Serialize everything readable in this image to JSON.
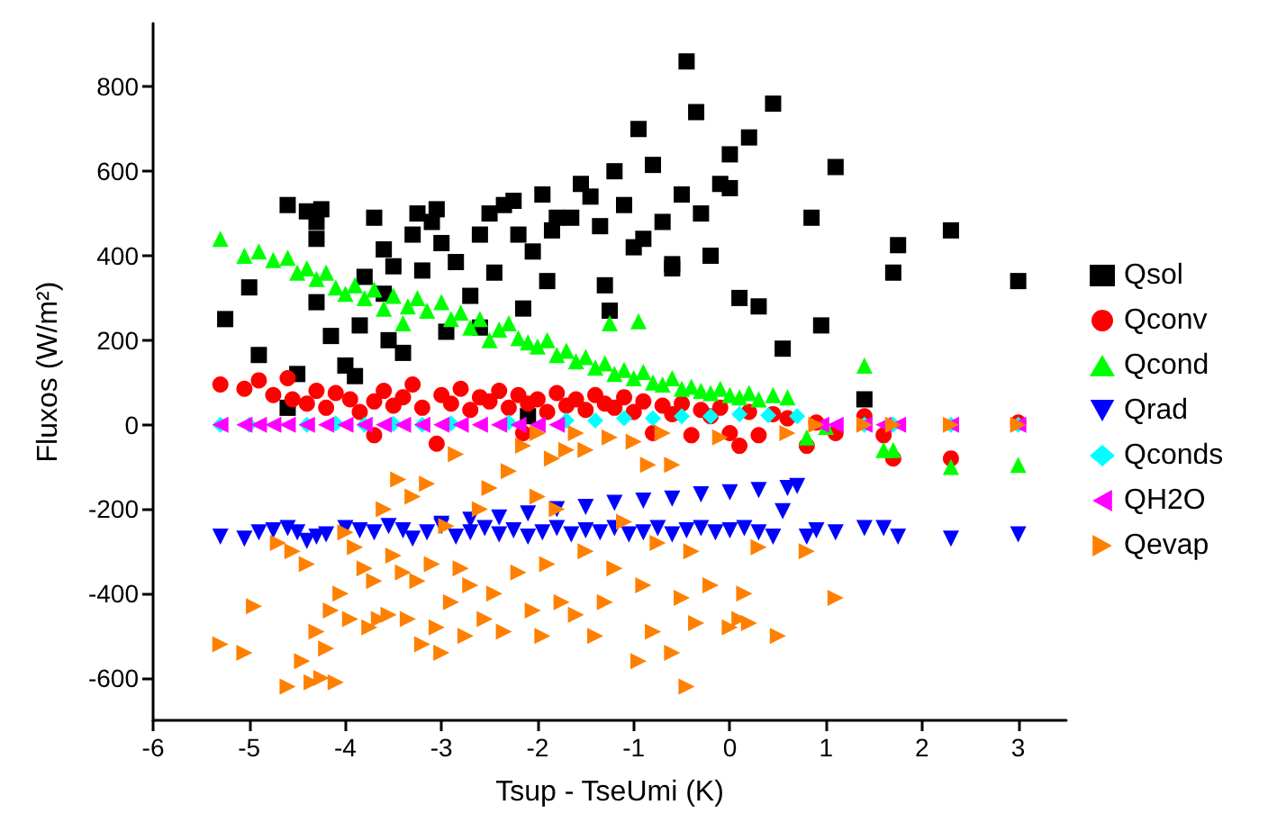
{
  "chart_data": {
    "type": "scatter",
    "xlabel": "Tsup - TseUmi (K)",
    "ylabel": "Fluxos (W/m²)",
    "xlim": [
      -6,
      3.5
    ],
    "xticks": [
      -6,
      -5,
      -4,
      -3,
      -2,
      -1,
      0,
      1,
      2,
      3
    ],
    "ylim": [
      -700,
      950
    ],
    "yticks": [
      -600,
      -400,
      -200,
      0,
      200,
      400,
      600,
      800
    ],
    "grid": false,
    "legend": "right",
    "series": [
      {
        "name": "Qsol",
        "color": "#000000",
        "marker": "square",
        "x": [
          -5.25,
          -5.0,
          -4.9,
          -4.6,
          -4.6,
          -4.5,
          -4.4,
          -4.3,
          -4.25,
          -4.3,
          -4.3,
          -4.15,
          -4.0,
          -3.9,
          -3.85,
          -3.8,
          -3.7,
          -3.6,
          -3.6,
          -3.55,
          -3.5,
          -3.4,
          -3.3,
          -3.25,
          -3.2,
          -3.1,
          -3.05,
          -3.0,
          -2.95,
          -2.85,
          -2.7,
          -2.6,
          -2.6,
          -2.5,
          -2.45,
          -2.35,
          -2.25,
          -2.2,
          -2.15,
          -2.1,
          -2.05,
          -1.95,
          -1.9,
          -1.85,
          -1.8,
          -1.65,
          -1.55,
          -1.45,
          -1.35,
          -1.3,
          -1.25,
          -1.2,
          -1.1,
          -1.0,
          -0.95,
          -0.9,
          -0.8,
          -0.7,
          -0.6,
          -0.6,
          -0.5,
          -0.45,
          -0.35,
          -0.3,
          -0.2,
          -0.1,
          0.0,
          0.0,
          0.1,
          0.2,
          0.3,
          0.45,
          0.55,
          0.85,
          0.95,
          1.1,
          1.4,
          1.7,
          1.75,
          2.3,
          3.0
        ],
        "values": [
          250,
          325,
          165,
          520,
          40,
          120,
          505,
          480,
          510,
          440,
          290,
          210,
          140,
          115,
          235,
          350,
          490,
          415,
          310,
          200,
          375,
          170,
          450,
          500,
          365,
          480,
          510,
          430,
          220,
          385,
          305,
          450,
          230,
          500,
          360,
          520,
          530,
          450,
          275,
          20,
          410,
          545,
          340,
          460,
          490,
          490,
          570,
          540,
          470,
          330,
          270,
          600,
          520,
          420,
          700,
          440,
          615,
          480,
          380,
          370,
          545,
          860,
          740,
          500,
          400,
          570,
          640,
          560,
          300,
          680,
          280,
          760,
          180,
          490,
          235,
          610,
          60,
          360,
          425,
          460,
          340
        ]
      },
      {
        "name": "Qconv",
        "color": "#ff0000",
        "marker": "circle",
        "x": [
          -5.3,
          -5.05,
          -4.9,
          -4.75,
          -4.6,
          -4.55,
          -4.4,
          -4.3,
          -4.2,
          -4.1,
          -3.95,
          -3.85,
          -3.7,
          -3.7,
          -3.6,
          -3.5,
          -3.4,
          -3.3,
          -3.2,
          -3.05,
          -3.0,
          -2.9,
          -2.8,
          -2.7,
          -2.6,
          -2.5,
          -2.4,
          -2.3,
          -2.2,
          -2.15,
          -2.1,
          -2.0,
          -1.9,
          -1.8,
          -1.7,
          -1.6,
          -1.5,
          -1.4,
          -1.3,
          -1.2,
          -1.1,
          -1.0,
          -0.9,
          -0.8,
          -0.7,
          -0.6,
          -0.5,
          -0.4,
          -0.3,
          -0.2,
          -0.1,
          0.0,
          0.1,
          0.2,
          0.3,
          0.45,
          0.6,
          0.8,
          0.9,
          1.1,
          1.4,
          1.6,
          1.7,
          2.3,
          3.0
        ],
        "values": [
          95,
          85,
          105,
          70,
          110,
          60,
          50,
          80,
          40,
          75,
          60,
          30,
          55,
          -25,
          80,
          45,
          65,
          95,
          40,
          -45,
          70,
          50,
          85,
          35,
          65,
          55,
          80,
          40,
          70,
          -20,
          50,
          60,
          30,
          75,
          45,
          60,
          35,
          70,
          50,
          40,
          65,
          30,
          55,
          -20,
          45,
          25,
          50,
          -25,
          35,
          20,
          40,
          -20,
          -50,
          30,
          -25,
          25,
          15,
          -50,
          5,
          -20,
          20,
          -25,
          -80,
          -80,
          5
        ]
      },
      {
        "name": "Qcond",
        "color": "#00ff00",
        "marker": "triangle",
        "x": [
          -5.3,
          -5.05,
          -4.9,
          -4.75,
          -4.6,
          -4.5,
          -4.4,
          -4.3,
          -4.2,
          -4.1,
          -4.0,
          -3.9,
          -3.8,
          -3.7,
          -3.6,
          -3.5,
          -3.4,
          -3.35,
          -3.25,
          -3.15,
          -3.0,
          -2.9,
          -2.8,
          -2.7,
          -2.6,
          -2.5,
          -2.4,
          -2.3,
          -2.2,
          -2.1,
          -2.0,
          -1.9,
          -1.8,
          -1.7,
          -1.6,
          -1.5,
          -1.4,
          -1.3,
          -1.25,
          -1.2,
          -1.1,
          -1.0,
          -0.95,
          -0.9,
          -0.8,
          -0.7,
          -0.6,
          -0.5,
          -0.4,
          -0.3,
          -0.2,
          -0.1,
          0.0,
          0.1,
          0.2,
          0.3,
          0.45,
          0.6,
          0.8,
          1.0,
          1.4,
          1.6,
          1.7,
          2.3,
          3.0
        ],
        "values": [
          440,
          400,
          410,
          390,
          395,
          360,
          370,
          345,
          360,
          325,
          310,
          330,
          300,
          320,
          275,
          305,
          240,
          280,
          300,
          270,
          290,
          250,
          265,
          230,
          250,
          200,
          225,
          240,
          205,
          195,
          185,
          200,
          165,
          175,
          150,
          160,
          135,
          145,
          240,
          120,
          130,
          110,
          245,
          125,
          100,
          95,
          110,
          85,
          90,
          80,
          75,
          85,
          70,
          65,
          75,
          60,
          70,
          65,
          -30,
          -5,
          140,
          -60,
          -60,
          -100,
          -95
        ]
      },
      {
        "name": "Qrad",
        "color": "#0000ff",
        "marker": "triangle-down",
        "x": [
          -5.3,
          -5.05,
          -4.9,
          -4.75,
          -4.6,
          -4.5,
          -4.4,
          -4.3,
          -4.2,
          -4.0,
          -3.85,
          -3.7,
          -3.55,
          -3.4,
          -3.3,
          -3.15,
          -3.0,
          -3.0,
          -2.85,
          -2.7,
          -2.7,
          -2.55,
          -2.4,
          -2.4,
          -2.25,
          -2.1,
          -2.1,
          -1.95,
          -1.8,
          -1.8,
          -1.65,
          -1.5,
          -1.5,
          -1.35,
          -1.2,
          -1.2,
          -1.05,
          -0.9,
          -0.9,
          -0.75,
          -0.6,
          -0.6,
          -0.45,
          -0.3,
          -0.3,
          -0.15,
          0.0,
          0.0,
          0.15,
          0.3,
          0.3,
          0.45,
          0.55,
          0.6,
          0.7,
          0.8,
          0.9,
          1.1,
          1.4,
          1.6,
          1.75,
          2.3,
          3.0
        ],
        "values": [
          -265,
          -270,
          -255,
          -250,
          -245,
          -255,
          -275,
          -265,
          -260,
          -245,
          -250,
          -255,
          -240,
          -250,
          -270,
          -255,
          -240,
          -235,
          -265,
          -255,
          -225,
          -245,
          -260,
          -220,
          -250,
          -265,
          -210,
          -255,
          -245,
          -200,
          -260,
          -250,
          -195,
          -255,
          -245,
          -185,
          -260,
          -255,
          -180,
          -245,
          -260,
          -175,
          -250,
          -245,
          -165,
          -255,
          -250,
          -160,
          -245,
          -255,
          -155,
          -265,
          -205,
          -150,
          -145,
          -265,
          -250,
          -255,
          -245,
          -245,
          -265,
          -270,
          -260
        ]
      },
      {
        "name": "Qconds",
        "color": "#00ffff",
        "marker": "diamond",
        "x": [
          -5.3,
          -5.0,
          -4.7,
          -4.4,
          -4.1,
          -3.8,
          -3.5,
          -3.2,
          -2.9,
          -2.6,
          -2.3,
          -2.0,
          -1.7,
          -1.4,
          -1.1,
          -0.8,
          -0.5,
          -0.2,
          0.1,
          0.4,
          0.7,
          0.9,
          1.4,
          1.7,
          2.3,
          3.0
        ],
        "values": [
          0,
          0,
          null,
          0,
          3,
          0,
          2,
          0,
          3,
          null,
          5,
          null,
          10,
          10,
          15,
          15,
          20,
          20,
          25,
          22,
          20,
          null,
          0,
          0,
          0,
          0
        ]
      },
      {
        "name": "QH2O",
        "color": "#ff00ff",
        "marker": "triangle-left",
        "x": [
          -5.3,
          -5.05,
          -4.9,
          -4.75,
          -4.6,
          -4.4,
          -4.2,
          -4.0,
          -3.8,
          -3.6,
          -3.4,
          -3.2,
          -3.0,
          -2.8,
          -2.6,
          -2.4,
          -2.2,
          -2.0,
          -1.8,
          0.95,
          1.1,
          1.4,
          1.6,
          1.75,
          2.3,
          3.0
        ],
        "values": [
          0,
          0,
          0,
          0,
          0,
          0,
          0,
          0,
          0,
          0,
          0,
          0,
          0,
          0,
          0,
          0,
          0,
          0,
          0,
          0,
          0,
          0,
          0,
          0,
          0,
          0
        ]
      },
      {
        "name": "Qevap",
        "color": "#ff8000",
        "marker": "triangle-right",
        "x": [
          -5.3,
          -5.05,
          -4.95,
          -4.7,
          -4.6,
          -4.55,
          -4.45,
          -4.4,
          -4.35,
          -4.3,
          -4.25,
          -4.2,
          -4.15,
          -4.1,
          -4.05,
          -4.0,
          -3.95,
          -3.9,
          -3.8,
          -3.75,
          -3.7,
          -3.65,
          -3.6,
          -3.55,
          -3.5,
          -3.45,
          -3.4,
          -3.35,
          -3.3,
          -3.25,
          -3.2,
          -3.15,
          -3.1,
          -3.05,
          -3.0,
          -2.95,
          -2.9,
          -2.85,
          -2.8,
          -2.75,
          -2.7,
          -2.6,
          -2.55,
          -2.5,
          -2.45,
          -2.35,
          -2.3,
          -2.2,
          -2.15,
          -2.05,
          -2.0,
          -2.0,
          -1.95,
          -1.9,
          -1.85,
          -1.8,
          -1.75,
          -1.7,
          -1.6,
          -1.6,
          -1.5,
          -1.5,
          -1.4,
          -1.3,
          -1.25,
          -1.2,
          -1.1,
          -1.0,
          -0.95,
          -0.9,
          -0.85,
          -0.8,
          -0.75,
          -0.7,
          -0.6,
          -0.6,
          -0.5,
          -0.45,
          -0.4,
          -0.35,
          -0.2,
          -0.1,
          0.0,
          0.1,
          0.15,
          0.2,
          0.3,
          0.5,
          0.6,
          0.8,
          0.9,
          1.1,
          1.4,
          1.7,
          2.3,
          3.0
        ],
        "values": [
          -520,
          -540,
          -430,
          -280,
          -620,
          -300,
          -560,
          -330,
          -610,
          -490,
          -600,
          -530,
          -440,
          -610,
          -400,
          -255,
          -460,
          -290,
          -340,
          -480,
          -370,
          -460,
          -200,
          -450,
          -310,
          -130,
          -350,
          -460,
          -170,
          -370,
          -520,
          -140,
          -330,
          -480,
          -540,
          -240,
          -420,
          -70,
          -340,
          -500,
          -380,
          -200,
          -460,
          -150,
          -400,
          -490,
          -110,
          -350,
          -50,
          -440,
          -170,
          -20,
          -500,
          -330,
          -80,
          -200,
          -420,
          -60,
          -450,
          -20,
          -300,
          -60,
          -500,
          -420,
          -30,
          -340,
          -230,
          -40,
          -560,
          -380,
          -95,
          -490,
          -280,
          -20,
          -540,
          -95,
          -410,
          -620,
          -300,
          -470,
          -380,
          -30,
          -480,
          -460,
          -400,
          -470,
          -290,
          -500,
          -20,
          -300,
          0,
          -410,
          0,
          0,
          0,
          0
        ]
      }
    ]
  }
}
